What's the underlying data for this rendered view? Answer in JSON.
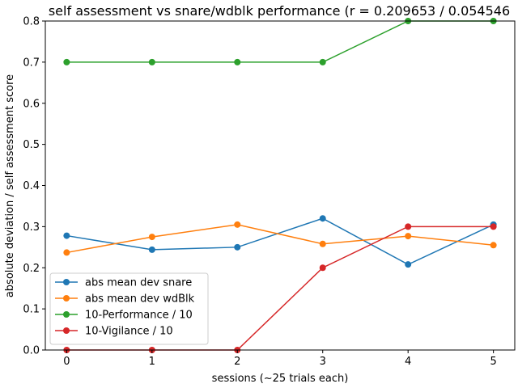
{
  "chart_data": {
    "type": "line",
    "title": "self assessment vs snare/wdblk performance (r = 0.209653 / 0.054546",
    "xlabel": "sessions (~25 trials each)",
    "ylabel": "absolute deviation / self assessment score",
    "x": [
      0,
      1,
      2,
      3,
      4,
      5
    ],
    "xticks": [
      "0",
      "1",
      "2",
      "3",
      "4",
      "5"
    ],
    "xlim": [
      -0.25,
      5.25
    ],
    "ylim": [
      0.0,
      0.8
    ],
    "yticks": [
      "0.0",
      "0.1",
      "0.2",
      "0.3",
      "0.4",
      "0.5",
      "0.6",
      "0.7",
      "0.8"
    ],
    "grid": false,
    "legend_position": "lower-left",
    "series": [
      {
        "name": "abs mean dev snare",
        "color": "#1f77b4",
        "values": [
          0.278,
          0.244,
          0.25,
          0.32,
          0.208,
          0.305
        ]
      },
      {
        "name": "abs mean dev wdBlk",
        "color": "#ff7f0e",
        "values": [
          0.237,
          0.275,
          0.305,
          0.258,
          0.277,
          0.255
        ]
      },
      {
        "name": "10-Performance / 10",
        "color": "#2ca02c",
        "values": [
          0.7,
          0.7,
          0.7,
          0.7,
          0.8,
          0.8
        ]
      },
      {
        "name": "10-Vigilance / 10",
        "color": "#d62728",
        "values": [
          0.0,
          0.0,
          0.0,
          0.2,
          0.3,
          0.3
        ]
      }
    ]
  }
}
